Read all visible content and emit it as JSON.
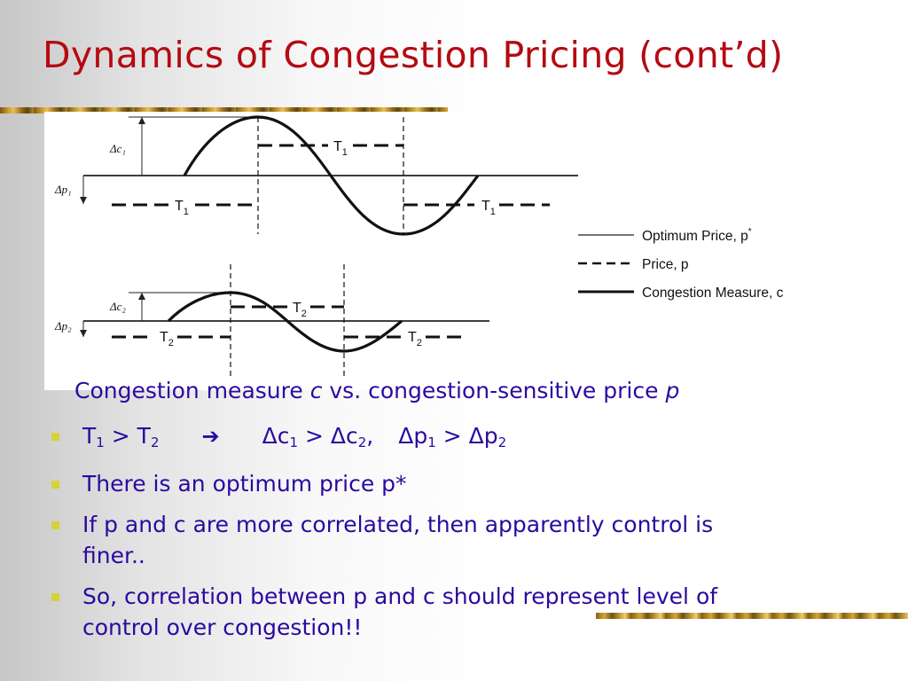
{
  "slide": {
    "title": "Dynamics of Congestion Pricing (cont’d)"
  },
  "figure": {
    "top_panel": {
      "delta_c_label": "Δc₁",
      "delta_p_label": "Δp₁",
      "period_labels": [
        "T",
        "T",
        "T"
      ],
      "period_subscript": "1"
    },
    "bottom_panel": {
      "delta_c_label": "Δc₂",
      "delta_p_label": "Δp₂",
      "period_labels": [
        "T",
        "T",
        "T"
      ],
      "period_subscript": "2"
    },
    "legend": [
      {
        "label": "Optimum Price, p",
        "superscript": "*",
        "style": "thin-solid"
      },
      {
        "label": "Price, p",
        "style": "dashed"
      },
      {
        "label": "Congestion Measure, c",
        "style": "thick-solid"
      }
    ]
  },
  "caption": {
    "prefix": "Congestion measure ",
    "var_c": "c",
    "middle": " vs. congestion-sensitive price ",
    "var_p": "p"
  },
  "bullets": [
    {
      "t1": "T",
      "t1_sub": "1",
      "gt1": " > ",
      "t2": "T",
      "t2_sub": "2",
      "arrow": "➔",
      "dc1": "Δc",
      "dc1_sub": "1",
      "gt2": " > ",
      "dc2": "Δc",
      "dc2_sub": "2",
      "comma": ",",
      "dp1": "Δp",
      "dp1_sub": "1",
      "gt3": " > ",
      "dp2": "Δp",
      "dp2_sub": "2"
    },
    {
      "text": "There is an optimum price p*"
    },
    {
      "text": "If p and c are more correlated, then apparently control is finer.."
    },
    {
      "text": "So, correlation between p and c should represent level of control over congestion!!"
    }
  ],
  "colors": {
    "title": "#b50a12",
    "body_text": "#2a0aa0",
    "bullet_marker": "#d6d23a"
  }
}
